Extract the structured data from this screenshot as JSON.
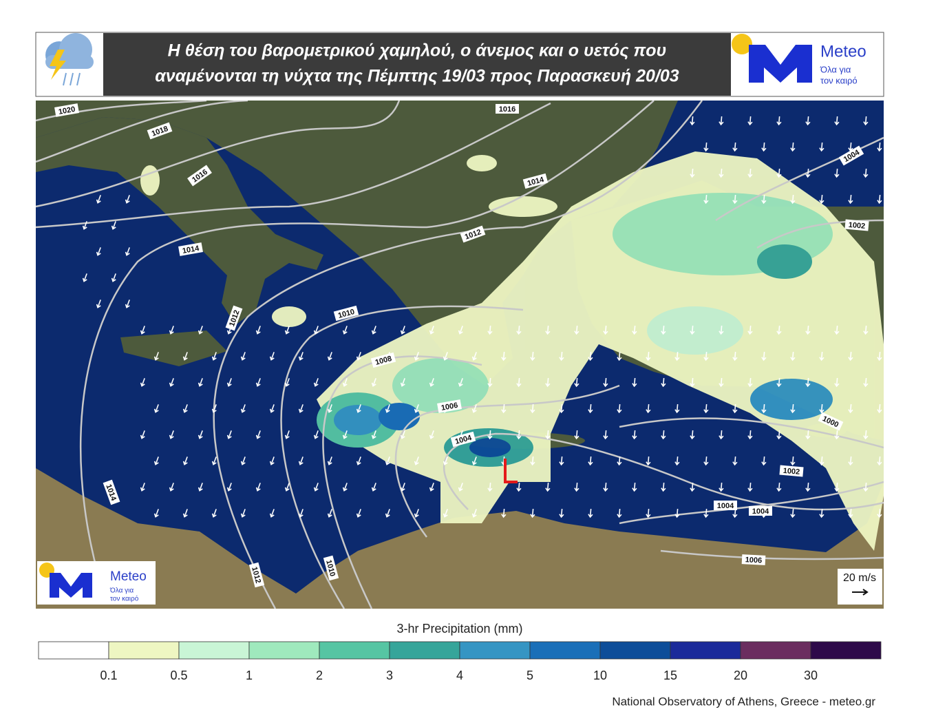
{
  "header": {
    "title_lines": [
      "Η θέση του βαρομετρικού χαμηλού, ο άνεμος και ο υετός που",
      "αναμένονται τη νύχτα της Πέμπτης 19/03 προς Παρασκευή 20/03"
    ],
    "logo": {
      "name": "Meteo",
      "tagline_lines": [
        "Όλα για",
        "τον καιρό"
      ]
    }
  },
  "map": {
    "low_marker": "L",
    "isobar_labels": [
      "1020",
      "1018",
      "1016",
      "1016",
      "1014",
      "1014",
      "1012",
      "1012",
      "1010",
      "1008",
      "1006",
      "1004",
      "1004",
      "1002",
      "1000",
      "1002",
      "1004",
      "1004",
      "1006",
      "1014",
      "1012",
      "1010"
    ],
    "wind_scale": {
      "label": "20 m/s"
    },
    "watermark": {
      "name": "Meteo",
      "tagline_lines": [
        "Όλα για",
        "τον καιρό"
      ]
    }
  },
  "colorbar": {
    "title": "3-hr Precipitation (mm)",
    "colors": [
      "#ffffff",
      "#eef6c2",
      "#c9f5d6",
      "#9fe9bd",
      "#56c5a3",
      "#36a59a",
      "#3595c3",
      "#1a6fb8",
      "#0d4d99",
      "#1b2a9a",
      "#6b2d5f",
      "#2e0a4a"
    ],
    "ticks": [
      0.1,
      0.5,
      1,
      2,
      3,
      4,
      5,
      10,
      15,
      20,
      30
    ]
  },
  "footer": "National Observatory of Athens, Greece - meteo.gr"
}
